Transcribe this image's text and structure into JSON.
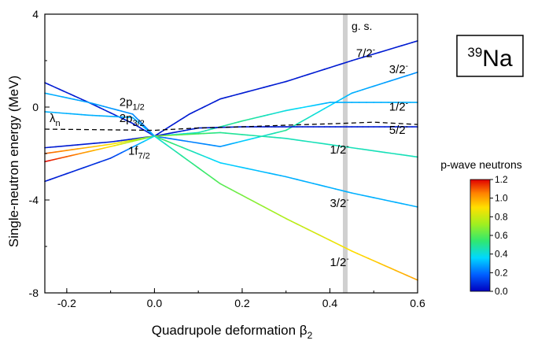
{
  "chart_data": {
    "type": "line",
    "xlabel": "Quadrupole deformation β",
    "xlabel_sub": "2",
    "ylabel": "Single-neutron energy (MeV)",
    "xlim": [
      -0.25,
      0.6
    ],
    "ylim": [
      -8,
      4
    ],
    "x_ticks": [
      -0.2,
      0.0,
      0.2,
      0.4,
      0.6
    ],
    "x_tick_labels": [
      "-0.2",
      "0.0",
      "0.2",
      "0.4",
      "0.6"
    ],
    "y_ticks": [
      -8,
      -4,
      0,
      4
    ],
    "y_tick_labels": [
      "-8",
      "-4",
      "0",
      "4"
    ],
    "nucleus": {
      "mass": "39",
      "element": "Na"
    },
    "ground_state": {
      "x": 0.435,
      "label": "g. s.",
      "color": "#d0d0d0"
    },
    "fermi_level": {
      "label": "λ",
      "label_sub": "n",
      "points": [
        [
          -0.25,
          -0.95
        ],
        [
          0.0,
          -1.0
        ],
        [
          0.1,
          -0.9
        ],
        [
          0.2,
          -0.85
        ],
        [
          0.3,
          -0.78
        ],
        [
          0.4,
          -0.72
        ],
        [
          0.5,
          -0.65
        ],
        [
          0.6,
          -0.75
        ]
      ]
    },
    "series": [
      {
        "points": [
          [
            -0.25,
            1.05
          ],
          [
            -0.15,
            0.2
          ],
          [
            -0.05,
            -0.7
          ],
          [
            0.0,
            -1.25
          ],
          [
            0.08,
            -0.3
          ],
          [
            0.15,
            0.35
          ],
          [
            0.3,
            1.1
          ],
          [
            0.45,
            2.0
          ],
          [
            0.6,
            2.85
          ]
        ],
        "pwave": [
          0.05,
          0.05,
          0.05,
          0.05,
          0.05,
          0.05,
          0.05,
          0.05,
          0.05
        ]
      },
      {
        "points": [
          [
            -0.25,
            0.6
          ],
          [
            -0.15,
            0.2
          ],
          [
            -0.05,
            -0.3
          ],
          [
            0.0,
            -1.25
          ],
          [
            0.15,
            -1.7
          ],
          [
            0.3,
            -1.0
          ],
          [
            0.45,
            0.6
          ],
          [
            0.6,
            1.5
          ]
        ],
        "pwave": [
          0.3,
          0.28,
          0.25,
          0.2,
          0.25,
          0.5,
          0.3,
          0.25
        ]
      },
      {
        "points": [
          [
            -0.25,
            -0.2
          ],
          [
            -0.15,
            -0.35
          ],
          [
            -0.05,
            -0.45
          ],
          [
            0.0,
            -1.25
          ],
          [
            0.1,
            -1.1
          ],
          [
            0.2,
            -0.6
          ],
          [
            0.3,
            -0.15
          ],
          [
            0.4,
            0.2
          ],
          [
            0.6,
            0.2
          ]
        ],
        "pwave": [
          0.3,
          0.3,
          0.3,
          0.3,
          0.45,
          0.5,
          0.4,
          0.3,
          0.3
        ]
      },
      {
        "points": [
          [
            -0.25,
            -1.75
          ],
          [
            -0.1,
            -1.5
          ],
          [
            0.0,
            -1.25
          ],
          [
            0.1,
            -0.9
          ],
          [
            0.2,
            -0.85
          ],
          [
            0.3,
            -0.85
          ],
          [
            0.45,
            -0.85
          ],
          [
            0.6,
            -0.85
          ]
        ],
        "pwave": [
          0.05,
          0.05,
          0.05,
          0.05,
          0.05,
          0.05,
          0.05,
          0.05
        ]
      },
      {
        "points": [
          [
            -0.25,
            -2.0
          ],
          [
            -0.1,
            -1.6
          ],
          [
            0.0,
            -1.25
          ],
          [
            0.15,
            -1.1
          ],
          [
            0.3,
            -1.35
          ],
          [
            0.45,
            -1.75
          ],
          [
            0.6,
            -2.15
          ]
        ],
        "pwave": [
          1.1,
          0.9,
          0.7,
          0.5,
          0.45,
          0.45,
          0.45
        ]
      },
      {
        "points": [
          [
            -0.25,
            -2.35
          ],
          [
            -0.1,
            -1.7
          ],
          [
            0.0,
            -1.25
          ],
          [
            0.15,
            -2.4
          ],
          [
            0.3,
            -3.0
          ],
          [
            0.45,
            -3.7
          ],
          [
            0.6,
            -4.3
          ]
        ],
        "pwave": [
          1.2,
          0.9,
          0.6,
          0.35,
          0.3,
          0.3,
          0.3
        ]
      },
      {
        "points": [
          [
            -0.25,
            -3.2
          ],
          [
            -0.1,
            -2.2
          ],
          [
            0.0,
            -1.25
          ],
          [
            0.15,
            -3.3
          ],
          [
            0.3,
            -4.8
          ],
          [
            0.45,
            -6.2
          ],
          [
            0.6,
            -7.45
          ]
        ],
        "pwave": [
          0.05,
          0.1,
          0.4,
          0.6,
          0.75,
          0.9,
          1.0
        ]
      }
    ],
    "annotations": [
      {
        "text": "7/2",
        "sup": "-",
        "x": 0.46,
        "y": 2.15
      },
      {
        "text": "3/2",
        "sup": "-",
        "x": 0.535,
        "y": 1.45
      },
      {
        "text": "1/2",
        "sup": "-",
        "x": 0.535,
        "y": -0.15
      },
      {
        "text": "5/2",
        "sup": "-",
        "x": 0.535,
        "y": -1.15
      },
      {
        "text": "1/2",
        "sup": "-",
        "x": 0.4,
        "y": -2.0
      },
      {
        "text": "3/2",
        "sup": "-",
        "x": 0.4,
        "y": -4.3
      },
      {
        "text": "1/2",
        "sup": "-",
        "x": 0.4,
        "y": -6.85
      },
      {
        "text": "2p",
        "sub": "1/2",
        "x": -0.08,
        "y": 0.05
      },
      {
        "text": "2p",
        "sub": "3/2",
        "x": -0.08,
        "y": -0.65
      },
      {
        "text": "1f",
        "sub": "7/2",
        "x": -0.06,
        "y": -2.05
      }
    ],
    "colorbar": {
      "title": "p-wave neutrons",
      "min": 0.0,
      "max": 1.2,
      "ticks": [
        0.0,
        0.2,
        0.4,
        0.6,
        0.8,
        1.0,
        1.2
      ],
      "tick_labels": [
        "0.0",
        "0.2",
        "0.4",
        "0.6",
        "0.8",
        "1.0",
        "1.2"
      ]
    }
  }
}
